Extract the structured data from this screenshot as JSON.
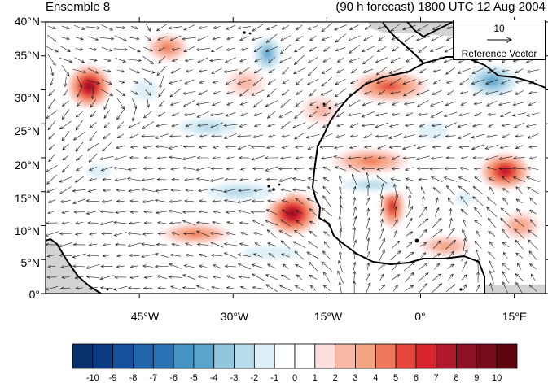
{
  "panel_title": "Ensemble 8",
  "forecast_title": "(90 h forecast) 1800 UTC 12 Aug 2004",
  "lat_labels": [
    "40°N",
    "35°N",
    "30°N",
    "25°N",
    "20°N",
    "15°N",
    "10°N",
    "5°N",
    "0°"
  ],
  "lon_labels": [
    "45°W",
    "30°W",
    "15°W",
    "0°",
    "15°E"
  ],
  "reference_vector": {
    "magnitude": "10",
    "label": "Reference Vector"
  },
  "colorbar": {
    "labels": [
      "-10",
      "-9",
      "-8",
      "-7",
      "-6",
      "-5",
      "-4",
      "-3",
      "-2",
      "-1",
      "0",
      "1",
      "2",
      "3",
      "4",
      "5",
      "6",
      "7",
      "8",
      "9",
      "10"
    ],
    "colors": [
      "#08306b",
      "#0b3b85",
      "#15509c",
      "#2166ac",
      "#2b72b5",
      "#4393c3",
      "#5aa3cc",
      "#92c5de",
      "#b9dcea",
      "#deeff7",
      "#ffffff",
      "#ffffff",
      "#fde0dd",
      "#f9b7a6",
      "#f4a582",
      "#f0785c",
      "#e7473b",
      "#d6242e",
      "#b2182b",
      "#8e1024",
      "#760c1c",
      "#5e0510"
    ]
  },
  "map_extent": {
    "lon": [
      -60,
      20
    ],
    "lat": [
      0,
      40
    ]
  },
  "colors": {
    "land_mask": "#d3d3d3",
    "coast": "#000000",
    "arrow": "#1a1a1a"
  },
  "field_blobs": [
    {
      "lon": -53.0,
      "lat": 30.5,
      "val": 8,
      "rx": 3.5,
      "ry": 3.2
    },
    {
      "lon": -40.5,
      "lat": 36.2,
      "val": 4,
      "rx": 3.2,
      "ry": 2.0
    },
    {
      "lon": -20.5,
      "lat": 11.8,
      "val": 8,
      "rx": 4.2,
      "ry": 3.2
    },
    {
      "lon": -4.5,
      "lat": 12.8,
      "val": 6,
      "rx": 2.0,
      "ry": 3.2
    },
    {
      "lon": -5.0,
      "lat": 30.5,
      "val": 5,
      "rx": 6.0,
      "ry": 2.3
    },
    {
      "lon": -8.0,
      "lat": 19.5,
      "val": 4,
      "rx": 6.0,
      "ry": 1.8
    },
    {
      "lon": 13.5,
      "lat": 18.0,
      "val": 7,
      "rx": 4.0,
      "ry": 2.7
    },
    {
      "lon": -36.0,
      "lat": 8.8,
      "val": 4,
      "rx": 5.5,
      "ry": 1.5
    },
    {
      "lon": -24.5,
      "lat": 35.3,
      "val": -5,
      "rx": 2.8,
      "ry": 3.2
    },
    {
      "lon": 11.5,
      "lat": 31.3,
      "val": -5,
      "rx": 5.0,
      "ry": 3.0
    },
    {
      "lon": -34.0,
      "lat": 24.5,
      "val": -3,
      "rx": 7.0,
      "ry": 2.0
    },
    {
      "lon": -29.0,
      "lat": 15.0,
      "val": -3,
      "rx": 8.0,
      "ry": 2.0
    },
    {
      "lon": -8.0,
      "lat": 16.0,
      "val": -3,
      "rx": 7.0,
      "ry": 1.5
    },
    {
      "lon": -51.5,
      "lat": 18.0,
      "val": -2,
      "rx": 4.0,
      "ry": 2.0
    },
    {
      "lon": -24.0,
      "lat": 6.0,
      "val": -2,
      "rx": 9.0,
      "ry": 2.0
    },
    {
      "lon": 4.0,
      "lat": 7.0,
      "val": 3,
      "rx": 4.0,
      "ry": 1.5
    },
    {
      "lon": -44.0,
      "lat": 30.0,
      "val": -2,
      "rx": 4.0,
      "ry": 3.0
    },
    {
      "lon": 2.0,
      "lat": 24.0,
      "val": -2,
      "rx": 5.0,
      "ry": 2.5
    },
    {
      "lon": -16.0,
      "lat": 27.0,
      "val": 2,
      "rx": 3.0,
      "ry": 2.0
    },
    {
      "lon": -28.0,
      "lat": 31.0,
      "val": 2,
      "rx": 3.0,
      "ry": 2.0
    },
    {
      "lon": 7.0,
      "lat": 14.0,
      "val": -2,
      "rx": 3.0,
      "ry": 2.0
    },
    {
      "lon": 16.0,
      "lat": 10.0,
      "val": 3,
      "rx": 3.0,
      "ry": 2.0
    }
  ],
  "wind_flow": [
    {
      "lon": -50,
      "lat": 35,
      "u": 1.0,
      "v": -0.25
    },
    {
      "lon": -35,
      "lat": 38,
      "u": -1.0,
      "v": -0.3
    },
    {
      "lon": -20,
      "lat": 30,
      "u": -0.8,
      "v": -0.6
    },
    {
      "lon": -10,
      "lat": 35,
      "u": -0.9,
      "v": -0.5
    },
    {
      "lon": 5,
      "lat": 33,
      "u": -0.8,
      "v": -0.4
    },
    {
      "lon": 12,
      "lat": 25,
      "u": -1.0,
      "v": -0.3
    },
    {
      "lon": -5,
      "lat": 22,
      "u": -1.0,
      "v": -0.25
    },
    {
      "lon": -25,
      "lat": 18,
      "u": -1.0,
      "v": -0.15
    },
    {
      "lon": -45,
      "lat": 15,
      "u": -1.0,
      "v": 0.0
    },
    {
      "lon": -20,
      "lat": 10,
      "u": -0.6,
      "v": 0.4
    },
    {
      "lon": -8,
      "lat": 12,
      "u": 0.2,
      "v": 0.8
    },
    {
      "lon": 0,
      "lat": 6,
      "u": 0.6,
      "v": 0.5
    },
    {
      "lon": -35,
      "lat": 5,
      "u": -0.8,
      "v": 0.2
    },
    {
      "lon": -50,
      "lat": 5,
      "u": -0.9,
      "v": -0.1
    },
    {
      "lon": 12,
      "lat": 12,
      "u": -0.4,
      "v": 0.4
    },
    {
      "lon": -55,
      "lat": 25,
      "u": -0.6,
      "v": -0.6
    }
  ]
}
